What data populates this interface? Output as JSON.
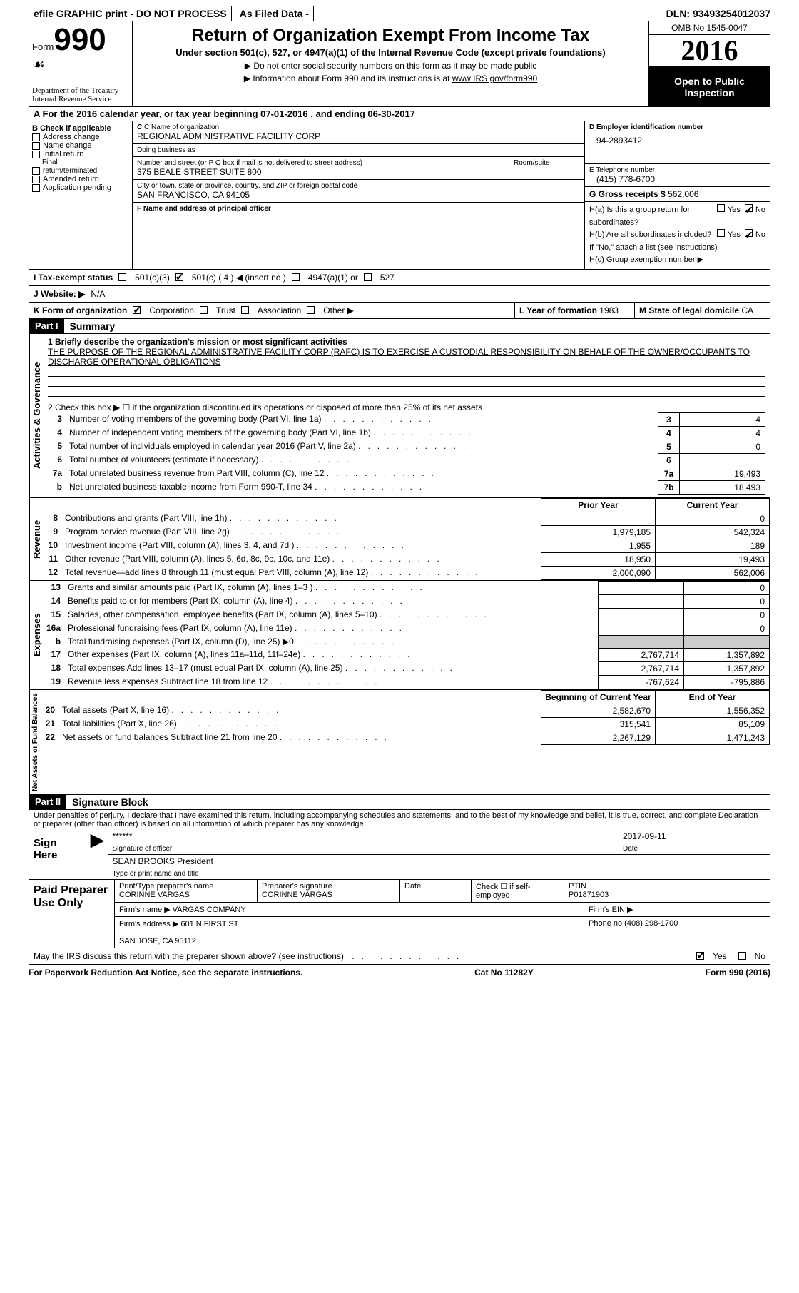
{
  "topbar": {
    "efile": "efile GRAPHIC print - DO NOT PROCESS",
    "asfiled": "As Filed Data -",
    "dln_label": "DLN:",
    "dln": "93493254012037"
  },
  "header": {
    "form_word": "Form",
    "form_num": "990",
    "dept": "Department of the Treasury\nInternal Revenue Service",
    "title": "Return of Organization Exempt From Income Tax",
    "subtitle": "Under section 501(c), 527, or 4947(a)(1) of the Internal Revenue Code (except private foundations)",
    "note1": "▶ Do not enter social security numbers on this form as it may be made public",
    "note2": "▶ Information about Form 990 and its instructions is at ",
    "note2_link": "www IRS gov/form990",
    "omb": "OMB No  1545-0047",
    "year": "2016",
    "open": "Open to Public Inspection"
  },
  "row_a": "A   For the 2016 calendar year, or tax year beginning 07-01-2016   , and ending 06-30-2017",
  "box_b": {
    "title": "B Check if applicable",
    "items": [
      "Address change",
      "Name change",
      "Initial return",
      "Final return/terminated",
      "Amended return",
      "Application pending"
    ]
  },
  "box_c": {
    "name_lbl": "C Name of organization",
    "name": "REGIONAL ADMINISTRATIVE FACILITY CORP",
    "dba_lbl": "Doing business as",
    "dba": "",
    "street_lbl": "Number and street (or P O  box if mail is not delivered to street address)",
    "room_lbl": "Room/suite",
    "street": "375 BEALE STREET SUITE 800",
    "city_lbl": "City or town, state or province, country, and ZIP or foreign postal code",
    "city": "SAN FRANCISCO, CA  94105",
    "f_lbl": "F  Name and address of principal officer",
    "f_val": ""
  },
  "box_de": {
    "d_lbl": "D Employer identification number",
    "d_val": "94-2893412",
    "e_lbl": "E Telephone number",
    "e_val": "(415) 778-6700",
    "g_lbl": "G Gross receipts $",
    "g_val": "562,006"
  },
  "box_h": {
    "ha": "H(a)  Is this a group return for subordinates?",
    "hb": "H(b)  Are all subordinates included?",
    "hb_note": "If \"No,\" attach a list  (see instructions)",
    "hc": "H(c)  Group exemption number ▶",
    "yes": "Yes",
    "no": "No"
  },
  "row_i": {
    "label": "I   Tax-exempt status",
    "opt1": "501(c)(3)",
    "opt2": "501(c) ( 4 ) ◀ (insert no )",
    "opt3": "4947(a)(1) or",
    "opt4": "527"
  },
  "row_j": {
    "label": "J   Website: ▶",
    "val": "N/A"
  },
  "row_k": {
    "label": "K Form of organization",
    "opts": [
      "Corporation",
      "Trust",
      "Association",
      "Other ▶"
    ],
    "l_lbl": "L Year of formation",
    "l_val": "1983",
    "m_lbl": "M State of legal domicile",
    "m_val": "CA"
  },
  "part1": {
    "hdr": "Part I",
    "title": "Summary",
    "vlabels": [
      "Activities & Governance",
      "Revenue",
      "Expenses",
      "Net Assets or Fund Balances"
    ],
    "q1": "1  Briefly describe the organization's mission or most significant activities",
    "q1_val": "THE PURPOSE OF THE REGIONAL ADMINISTRATIVE FACILITY CORP  (RAFC) IS TO EXERCISE A CUSTODIAL RESPONSIBILITY ON BEHALF OF THE OWNER/OCCUPANTS TO DISCHARGE OPERATIONAL OBLIGATIONS",
    "q2": "2   Check this box ▶ ☐  if the organization discontinued its operations or disposed of more than 25% of its net assets",
    "lines_ag": [
      {
        "n": "3",
        "t": "Number of voting members of the governing body (Part VI, line 1a)",
        "b": "3",
        "v": "4"
      },
      {
        "n": "4",
        "t": "Number of independent voting members of the governing body (Part VI, line 1b)",
        "b": "4",
        "v": "4"
      },
      {
        "n": "5",
        "t": "Total number of individuals employed in calendar year 2016 (Part V, line 2a)",
        "b": "5",
        "v": "0"
      },
      {
        "n": "6",
        "t": "Total number of volunteers (estimate if necessary)",
        "b": "6",
        "v": ""
      },
      {
        "n": "7a",
        "t": "Total unrelated business revenue from Part VIII, column (C), line 12",
        "b": "7a",
        "v": "19,493"
      },
      {
        "n": "b",
        "t": "Net unrelated business taxable income from Form 990-T, line 34",
        "b": "7b",
        "v": "18,493"
      }
    ],
    "col_py": "Prior Year",
    "col_cy": "Current Year",
    "lines_rev": [
      {
        "n": "8",
        "t": "Contributions and grants (Part VIII, line 1h)",
        "py": "",
        "cy": "0"
      },
      {
        "n": "9",
        "t": "Program service revenue (Part VIII, line 2g)",
        "py": "1,979,185",
        "cy": "542,324"
      },
      {
        "n": "10",
        "t": "Investment income (Part VIII, column (A), lines 3, 4, and 7d )",
        "py": "1,955",
        "cy": "189"
      },
      {
        "n": "11",
        "t": "Other revenue (Part VIII, column (A), lines 5, 6d, 8c, 9c, 10c, and 11e)",
        "py": "18,950",
        "cy": "19,493"
      },
      {
        "n": "12",
        "t": "Total revenue—add lines 8 through 11 (must equal Part VIII, column (A), line 12)",
        "py": "2,000,090",
        "cy": "562,006"
      }
    ],
    "lines_exp": [
      {
        "n": "13",
        "t": "Grants and similar amounts paid (Part IX, column (A), lines 1–3 )",
        "py": "",
        "cy": "0"
      },
      {
        "n": "14",
        "t": "Benefits paid to or for members (Part IX, column (A), line 4)",
        "py": "",
        "cy": "0"
      },
      {
        "n": "15",
        "t": "Salaries, other compensation, employee benefits (Part IX, column (A), lines 5–10)",
        "py": "",
        "cy": "0"
      },
      {
        "n": "16a",
        "t": "Professional fundraising fees (Part IX, column (A), line 11e)",
        "py": "",
        "cy": "0"
      },
      {
        "n": "b",
        "t": "Total fundraising expenses (Part IX, column (D), line 25) ▶0",
        "py": "GREY",
        "cy": "GREY"
      },
      {
        "n": "17",
        "t": "Other expenses (Part IX, column (A), lines 11a–11d, 11f–24e)",
        "py": "2,767,714",
        "cy": "1,357,892"
      },
      {
        "n": "18",
        "t": "Total expenses  Add lines 13–17 (must equal Part IX, column (A), line 25)",
        "py": "2,767,714",
        "cy": "1,357,892"
      },
      {
        "n": "19",
        "t": "Revenue less expenses  Subtract line 18 from line 12",
        "py": "-767,624",
        "cy": "-795,886"
      }
    ],
    "col_bcy": "Beginning of Current Year",
    "col_eoy": "End of Year",
    "lines_na": [
      {
        "n": "20",
        "t": "Total assets (Part X, line 16)",
        "py": "2,582,670",
        "cy": "1,556,352"
      },
      {
        "n": "21",
        "t": "Total liabilities (Part X, line 26)",
        "py": "315,541",
        "cy": "85,109"
      },
      {
        "n": "22",
        "t": "Net assets or fund balances  Subtract line 21 from line 20",
        "py": "2,267,129",
        "cy": "1,471,243"
      }
    ]
  },
  "part2": {
    "hdr": "Part II",
    "title": "Signature Block",
    "decl": "Under penalties of perjury, I declare that I have examined this return, including accompanying schedules and statements, and to the best of my knowledge and belief, it is true, correct, and complete  Declaration of preparer (other than officer) is based on all information of which preparer has any knowledge",
    "sign_here": "Sign Here",
    "sig_stars": "******",
    "sig_date": "2017-09-11",
    "sig_of_officer": "Signature of officer",
    "date_lbl": "Date",
    "officer_name": "SEAN BROOKS  President",
    "type_name": "Type or print name and title",
    "paid": "Paid Preparer Use Only",
    "prep_name_lbl": "Print/Type preparer's name",
    "prep_name": "CORINNE VARGAS",
    "prep_sig_lbl": "Preparer's signature",
    "prep_sig": "CORINNE VARGAS",
    "prep_date_lbl": "Date",
    "prep_check": "Check ☐ if self-employed",
    "ptin_lbl": "PTIN",
    "ptin": "P01871903",
    "firm_name_lbl": "Firm's name    ▶",
    "firm_name": "VARGAS COMPANY",
    "firm_ein_lbl": "Firm's EIN ▶",
    "firm_addr_lbl": "Firm's address ▶",
    "firm_addr": "601 N FIRST ST\n\nSAN JOSE, CA  95112",
    "phone_lbl": "Phone no",
    "phone": "(408) 298-1700",
    "discuss": "May the IRS discuss this return with the preparer shown above? (see instructions)",
    "yes": "Yes",
    "no": "No"
  },
  "footer": {
    "left": "For Paperwork Reduction Act Notice, see the separate instructions.",
    "mid": "Cat No  11282Y",
    "right": "Form 990 (2016)"
  }
}
